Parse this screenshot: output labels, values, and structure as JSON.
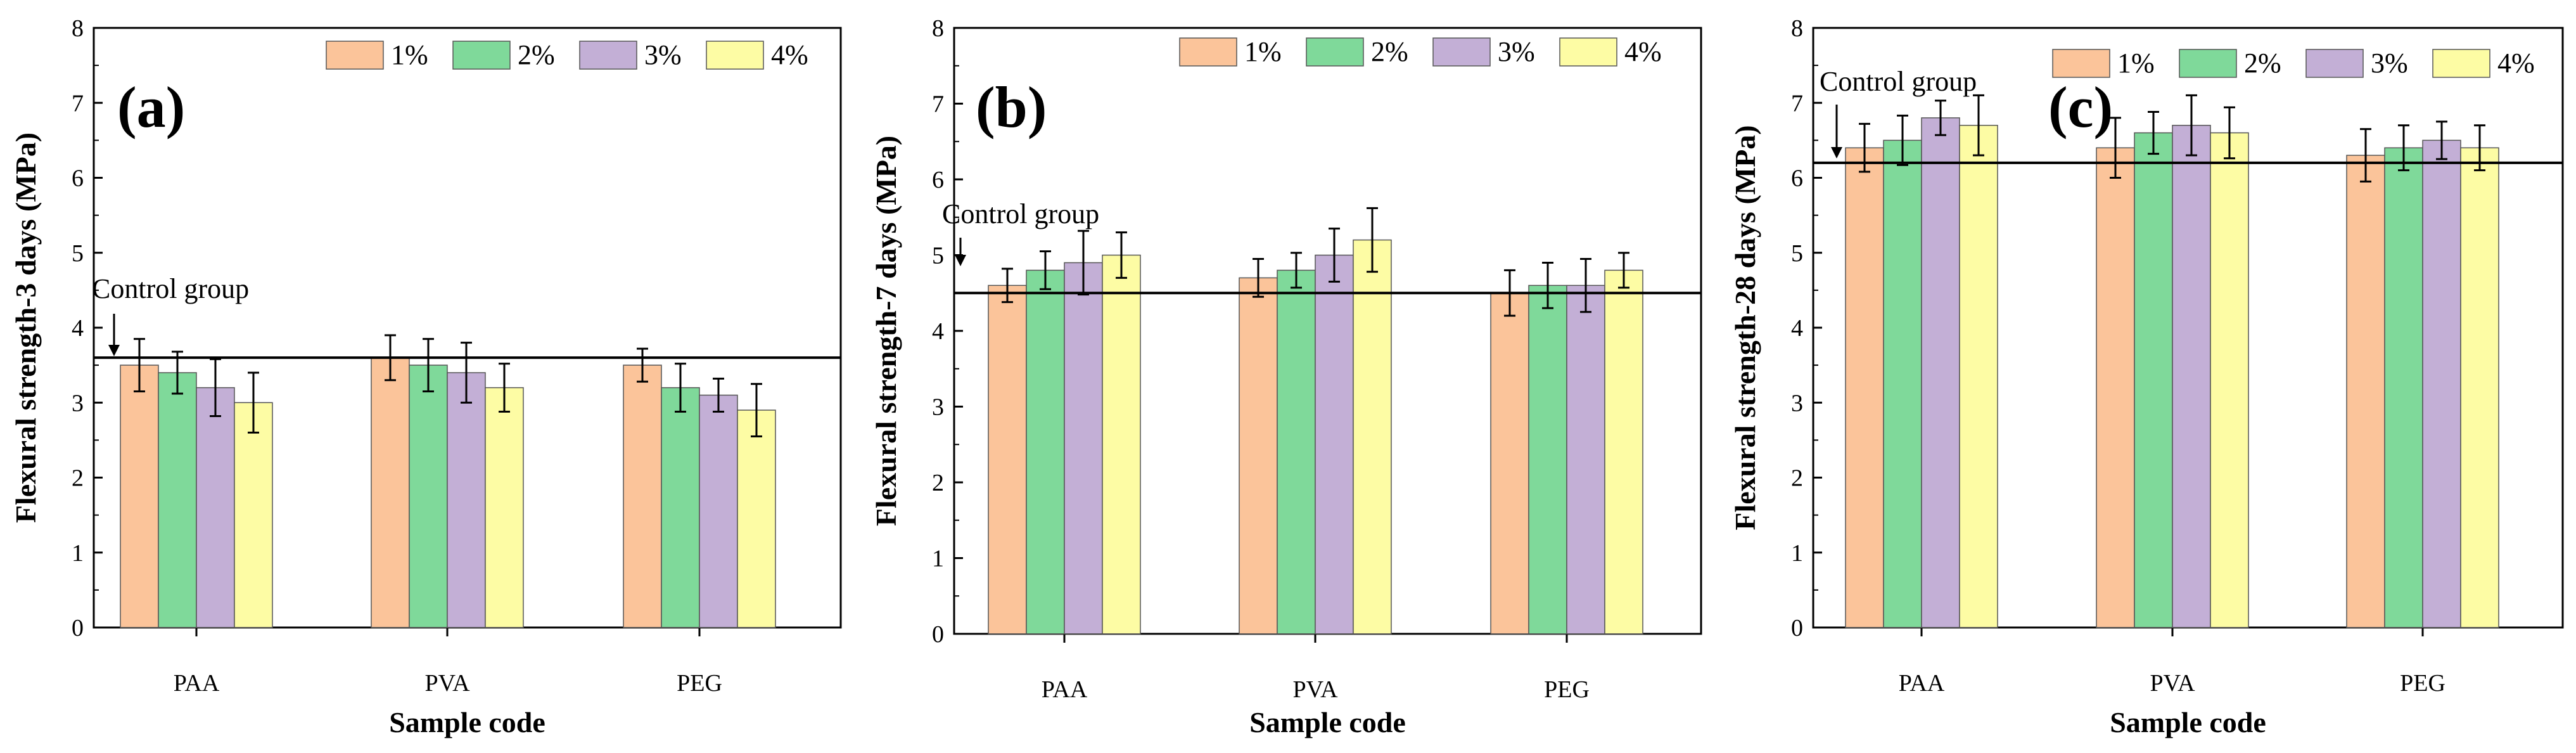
{
  "colors": {
    "1%": "#fbc49a",
    "2%": "#7fd99a",
    "3%": "#c3afd6",
    "4%": "#fdfca4",
    "stroke": "#555555",
    "axis": "#000000"
  },
  "chart_data": [
    {
      "type": "bar",
      "panel_label": "(a)",
      "categories": [
        "PAA",
        "PVA",
        "PEG"
      ],
      "series": [
        {
          "name": "1%",
          "values": [
            3.5,
            3.6,
            3.5
          ],
          "errors": [
            0.35,
            0.3,
            0.22
          ]
        },
        {
          "name": "2%",
          "values": [
            3.4,
            3.5,
            3.2
          ],
          "errors": [
            0.28,
            0.35,
            0.32
          ]
        },
        {
          "name": "3%",
          "values": [
            3.2,
            3.4,
            3.1
          ],
          "errors": [
            0.38,
            0.4,
            0.22
          ]
        },
        {
          "name": "4%",
          "values": [
            3.0,
            3.2,
            2.9
          ],
          "errors": [
            0.4,
            0.32,
            0.35
          ]
        }
      ],
      "control_group": 3.6,
      "control_label": "Control group",
      "xlabel": "Sample code",
      "ylabel": "Flexural strength-3 days (MPa)",
      "ylim": [
        0,
        8
      ],
      "yticks": [
        "0",
        "1",
        "2",
        "3",
        "4",
        "5",
        "6",
        "7",
        "8"
      ],
      "legend": "top-right"
    },
    {
      "type": "bar",
      "panel_label": "(b)",
      "categories": [
        "PAA",
        "PVA",
        "PEG"
      ],
      "series": [
        {
          "name": "1%",
          "values": [
            4.6,
            4.7,
            4.5
          ],
          "errors": [
            0.22,
            0.25,
            0.3
          ]
        },
        {
          "name": "2%",
          "values": [
            4.8,
            4.8,
            4.6
          ],
          "errors": [
            0.25,
            0.23,
            0.3
          ]
        },
        {
          "name": "3%",
          "values": [
            4.9,
            5.0,
            4.6
          ],
          "errors": [
            0.42,
            0.35,
            0.35
          ]
        },
        {
          "name": "4%",
          "values": [
            5.0,
            5.2,
            4.8
          ],
          "errors": [
            0.3,
            0.42,
            0.23
          ]
        }
      ],
      "control_group": 4.5,
      "control_label": "Control group",
      "xlabel": "Sample code",
      "ylabel": "Flexural strength-7 days (MPa)",
      "ylim": [
        0,
        8
      ],
      "yticks": [
        "0",
        "1",
        "2",
        "3",
        "4",
        "5",
        "6",
        "7",
        "8"
      ],
      "legend": "top-right"
    },
    {
      "type": "bar",
      "panel_label": "(c)",
      "categories": [
        "PAA",
        "PVA",
        "PEG"
      ],
      "series": [
        {
          "name": "1%",
          "values": [
            6.4,
            6.4,
            6.3
          ],
          "errors": [
            0.32,
            0.4,
            0.35
          ]
        },
        {
          "name": "2%",
          "values": [
            6.5,
            6.6,
            6.4
          ],
          "errors": [
            0.33,
            0.28,
            0.3
          ]
        },
        {
          "name": "3%",
          "values": [
            6.8,
            6.7,
            6.5
          ],
          "errors": [
            0.23,
            0.4,
            0.25
          ]
        },
        {
          "name": "4%",
          "values": [
            6.7,
            6.6,
            6.4
          ],
          "errors": [
            0.4,
            0.34,
            0.3
          ]
        }
      ],
      "control_group": 6.2,
      "control_label": "Control group",
      "xlabel": "Sample code",
      "ylabel": "Flexural strength-28 days (MPa)",
      "ylim": [
        0,
        8
      ],
      "yticks": [
        "0",
        "1",
        "2",
        "3",
        "4",
        "5",
        "6",
        "7",
        "8"
      ],
      "legend": "top-right"
    }
  ]
}
